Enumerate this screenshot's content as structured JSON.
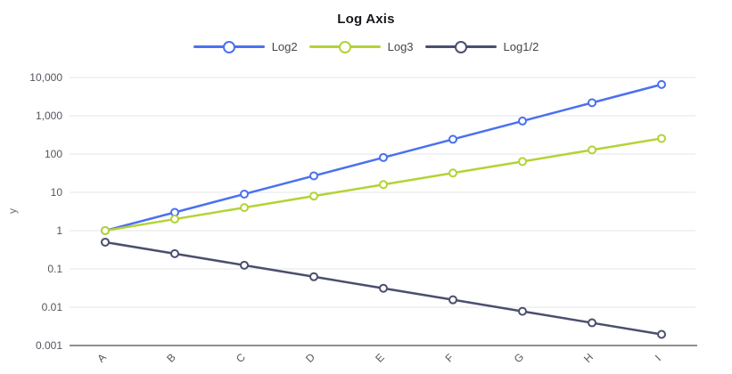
{
  "chart_data": {
    "type": "line",
    "title": "Log Axis",
    "xlabel": "",
    "ylabel": "y",
    "categories": [
      "A",
      "B",
      "C",
      "D",
      "E",
      "F",
      "G",
      "H",
      "I"
    ],
    "series": [
      {
        "name": "Log2",
        "color": "#4A71EE",
        "values": [
          1,
          3,
          9,
          27,
          81,
          243,
          729,
          2187,
          6561
        ]
      },
      {
        "name": "Log3",
        "color": "#B3D335",
        "values": [
          1,
          2,
          4,
          8,
          16,
          32,
          64,
          128,
          256
        ]
      },
      {
        "name": "Log1/2",
        "color": "#4B4F6E",
        "values": [
          0.5,
          0.25,
          0.125,
          0.0625,
          0.03125,
          0.015625,
          0.0078125,
          0.00390625,
          0.001953125
        ]
      }
    ],
    "y_scale": "log",
    "ylim": [
      0.001,
      10000
    ],
    "y_ticks": [
      10000,
      1000,
      100,
      10,
      1,
      0.1,
      0.01,
      0.001
    ],
    "y_tick_labels": [
      "10,000",
      "1,000",
      "100",
      "10",
      "1",
      "0.1",
      "0.01",
      "0.001"
    ],
    "x_tick_rotation": -45,
    "grid": true,
    "legend_position": "top",
    "marker": "hollow-circle"
  },
  "style": {
    "background": "#ffffff",
    "grid_color": "#e6e6ea",
    "axis_line_color": "#4c4d57",
    "tick_text_color": "#55565e",
    "axis_title_color": "#6a6b73",
    "title_color": "#17181c",
    "legend_text_color": "#45464d"
  }
}
